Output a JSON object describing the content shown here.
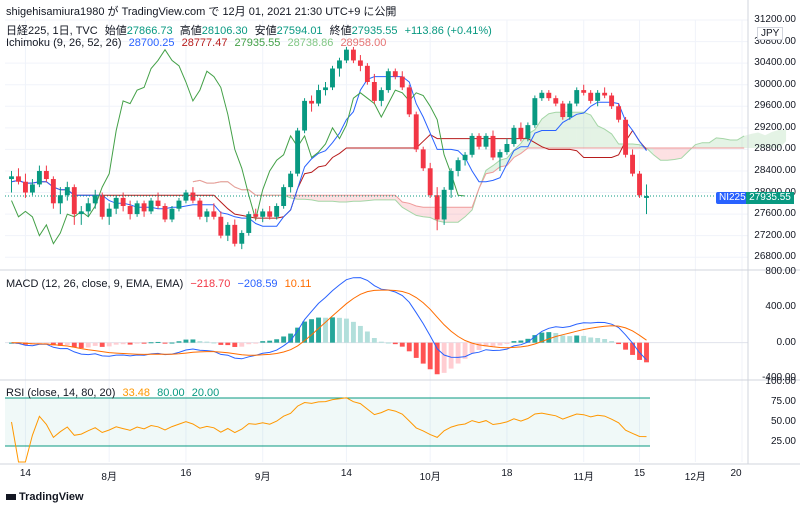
{
  "header": {
    "author_line": "shigehisamiura1980 が TradingView.com で 12月 01, 2021 21:30 UTC+9 に公開"
  },
  "main_legend": {
    "symbol": "日経225, 1日, TVC",
    "open_label": "始値",
    "open": "27866.73",
    "high_label": "高値",
    "high": "28106.30",
    "low_label": "安値",
    "low": "27594.01",
    "close_label": "終値",
    "close": "27935.55",
    "change": "+113.86 (+0.41%)",
    "colors": {
      "up": "#089981",
      "down": "#f23645",
      "text": "#131722"
    }
  },
  "ichimoku_legend": {
    "name": "Ichimoku (9, 26, 52, 26)",
    "v1": "28700.25",
    "v2": "28777.47",
    "v3": "27935.55",
    "v4": "28738.86",
    "v5": "28958.00",
    "colors": [
      "#2962ff",
      "#b71c1c",
      "#43a047",
      "#a5d6a7",
      "#ef9a9a"
    ]
  },
  "macd_legend": {
    "name": "MACD (12, 26, close, 9, EMA, EMA)",
    "hist": "−218.70",
    "macd": "−208.59",
    "signal": "10.11"
  },
  "rsi_legend": {
    "name": "RSI (close, 14, 80, 20)",
    "rsi": "33.48",
    "upper": "80.00",
    "lower": "20.00"
  },
  "price_axis": [
    "31200.00",
    "30800.00",
    "30400.00",
    "30000.00",
    "29600.00",
    "29200.00",
    "28800.00",
    "28400.00",
    "28000.00",
    "27600.00",
    "27200.00",
    "26800.00"
  ],
  "macd_axis": [
    "800.00",
    "400.00",
    "0.00",
    "-400.00"
  ],
  "rsi_axis": [
    "100.00",
    "75.00",
    "50.00",
    "25.00"
  ],
  "x_axis": [
    {
      "label": "14"
    },
    {
      "label": "8月"
    },
    {
      "label": "16"
    },
    {
      "label": "9月"
    },
    {
      "label": "14"
    },
    {
      "label": "10月"
    },
    {
      "label": "18"
    },
    {
      "label": "11月"
    },
    {
      "label": "15"
    },
    {
      "label": "12月"
    },
    {
      "label": "20"
    }
  ],
  "price_tag": {
    "symbol": "NI225",
    "value": "27935.55"
  },
  "currency": "JPY",
  "brand": "TradingView",
  "chart_data": {
    "type": "candlestick",
    "title": "日経225, 1日, TVC",
    "ylim": [
      26600,
      31200
    ],
    "ohlc": [
      [
        28250,
        28400,
        28000,
        28300
      ],
      [
        28300,
        28450,
        28150,
        28200
      ],
      [
        28200,
        28350,
        27900,
        28000
      ],
      [
        28000,
        28250,
        27950,
        28150
      ],
      [
        28150,
        28500,
        28100,
        28400
      ],
      [
        28400,
        28500,
        28200,
        28250
      ],
      [
        28250,
        28300,
        27700,
        27800
      ],
      [
        27800,
        28100,
        27600,
        27950
      ],
      [
        27950,
        28200,
        27850,
        28100
      ],
      [
        28100,
        28150,
        27400,
        27600
      ],
      [
        27600,
        27750,
        27400,
        27650
      ],
      [
        27650,
        27900,
        27550,
        27800
      ],
      [
        27800,
        28050,
        27700,
        27950
      ],
      [
        27950,
        28000,
        27500,
        27550
      ],
      [
        27550,
        27800,
        27400,
        27700
      ],
      [
        27700,
        27950,
        27600,
        27900
      ],
      [
        27900,
        28000,
        27650,
        27750
      ],
      [
        27750,
        27850,
        27500,
        27600
      ],
      [
        27600,
        27850,
        27550,
        27800
      ],
      [
        27800,
        27850,
        27550,
        27650
      ],
      [
        27650,
        27900,
        27600,
        27850
      ],
      [
        27850,
        28000,
        27700,
        27750
      ],
      [
        27750,
        27800,
        27450,
        27500
      ],
      [
        27500,
        27750,
        27450,
        27700
      ],
      [
        27700,
        27900,
        27650,
        27850
      ],
      [
        27850,
        28050,
        27800,
        28000
      ],
      [
        28000,
        28100,
        27800,
        27850
      ],
      [
        27850,
        27900,
        27500,
        27550
      ],
      [
        27550,
        27700,
        27450,
        27650
      ],
      [
        27650,
        27800,
        27500,
        27550
      ],
      [
        27550,
        27650,
        27150,
        27200
      ],
      [
        27200,
        27450,
        27100,
        27400
      ],
      [
        27400,
        27500,
        27000,
        27050
      ],
      [
        27050,
        27300,
        26950,
        27250
      ],
      [
        27250,
        27650,
        27200,
        27600
      ],
      [
        27600,
        27700,
        27500,
        27550
      ],
      [
        27550,
        27700,
        27450,
        27650
      ],
      [
        27650,
        27750,
        27500,
        27550
      ],
      [
        27550,
        27800,
        27500,
        27750
      ],
      [
        27750,
        28150,
        27700,
        28100
      ],
      [
        28100,
        28400,
        28000,
        28350
      ],
      [
        28350,
        29200,
        28300,
        29150
      ],
      [
        29150,
        29750,
        29100,
        29700
      ],
      [
        29700,
        29800,
        29500,
        29650
      ],
      [
        29650,
        30000,
        29600,
        29900
      ],
      [
        29900,
        30050,
        29800,
        29950
      ],
      [
        29950,
        30350,
        29900,
        30300
      ],
      [
        30300,
        30500,
        30150,
        30450
      ],
      [
        30450,
        30700,
        30400,
        30650
      ],
      [
        30650,
        30700,
        30400,
        30450
      ],
      [
        30450,
        30550,
        30250,
        30350
      ],
      [
        30350,
        30400,
        30000,
        30050
      ],
      [
        30050,
        30200,
        29650,
        29700
      ],
      [
        29700,
        29950,
        29600,
        29900
      ],
      [
        29900,
        30300,
        29850,
        30250
      ],
      [
        30250,
        30300,
        30100,
        30150
      ],
      [
        30150,
        30250,
        29900,
        29950
      ],
      [
        29950,
        30000,
        29400,
        29450
      ],
      [
        29450,
        29500,
        28750,
        28800
      ],
      [
        28800,
        28850,
        28400,
        28450
      ],
      [
        28450,
        28550,
        27900,
        27950
      ],
      [
        27950,
        28100,
        27300,
        27500
      ],
      [
        27500,
        28100,
        27400,
        28050
      ],
      [
        28050,
        28450,
        27900,
        28400
      ],
      [
        28400,
        28650,
        28300,
        28600
      ],
      [
        28600,
        28750,
        28500,
        28700
      ],
      [
        28700,
        29100,
        28650,
        29050
      ],
      [
        29050,
        29100,
        28800,
        28850
      ],
      [
        28850,
        29100,
        28800,
        29050
      ],
      [
        29050,
        29150,
        28600,
        28650
      ],
      [
        28650,
        28800,
        28400,
        28750
      ],
      [
        28750,
        29000,
        28700,
        28900
      ],
      [
        28900,
        29250,
        28850,
        29200
      ],
      [
        29200,
        29300,
        28950,
        29000
      ],
      [
        29000,
        29300,
        28950,
        29250
      ],
      [
        29250,
        29800,
        29200,
        29750
      ],
      [
        29750,
        29900,
        29700,
        29850
      ],
      [
        29850,
        29900,
        29700,
        29750
      ],
      [
        29750,
        29800,
        29600,
        29650
      ],
      [
        29650,
        29700,
        29350,
        29400
      ],
      [
        29400,
        29700,
        29350,
        29650
      ],
      [
        29650,
        29950,
        29600,
        29900
      ],
      [
        29900,
        30000,
        29800,
        29850
      ],
      [
        29850,
        29900,
        29650,
        29700
      ],
      [
        29700,
        29900,
        29600,
        29850
      ],
      [
        29850,
        29950,
        29750,
        29800
      ],
      [
        29800,
        29850,
        29550,
        29600
      ],
      [
        29600,
        29650,
        29300,
        29350
      ],
      [
        29350,
        29400,
        28650,
        28700
      ],
      [
        28700,
        28800,
        28300,
        28350
      ],
      [
        28350,
        28400,
        27900,
        27950
      ],
      [
        27900,
        28150,
        27600,
        27935
      ]
    ],
    "rsi_bands": {
      "upper": 80,
      "lower": 20
    },
    "macd_ylim": [
      -400,
      800
    ],
    "rsi_ylim": [
      0,
      100
    ]
  }
}
